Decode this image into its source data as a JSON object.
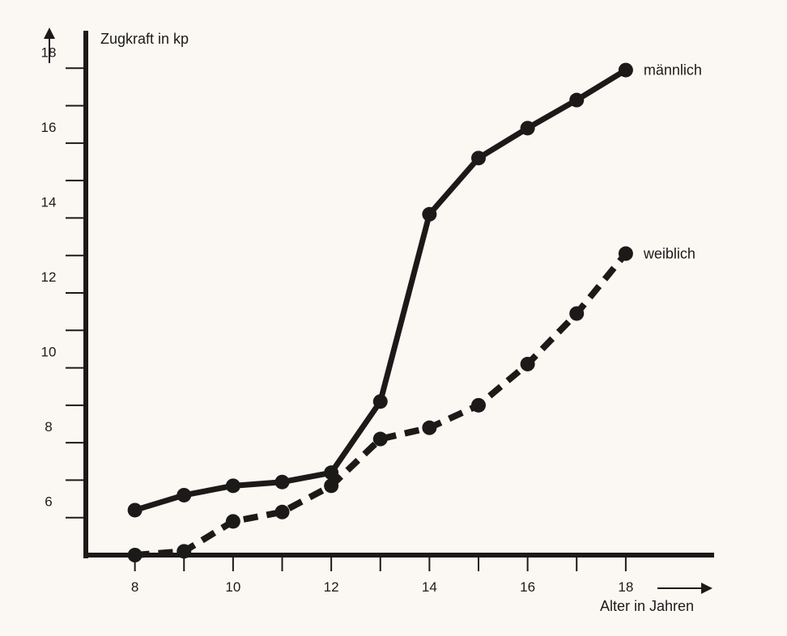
{
  "chart_data": {
    "type": "line",
    "ylabel": "Zugkraft in kp",
    "xlabel": "Alter in Jahren",
    "x": [
      8,
      9,
      10,
      11,
      12,
      13,
      14,
      15,
      16,
      17,
      18
    ],
    "xlim": [
      7,
      19.8
    ],
    "ylim": [
      5,
      19
    ],
    "x_ticks": [
      8,
      9,
      10,
      11,
      12,
      13,
      14,
      15,
      16,
      17,
      18
    ],
    "x_tick_labels": [
      "8",
      "10",
      "12",
      "14",
      "16",
      "18"
    ],
    "y_ticks": [
      6,
      7,
      8,
      9,
      10,
      11,
      12,
      13,
      14,
      15,
      16,
      17,
      18
    ],
    "y_tick_labels": [
      "6",
      "8",
      "10",
      "12",
      "14",
      "16",
      "18"
    ],
    "grid": false,
    "legend": "inline labels at line ends",
    "series": [
      {
        "name": "männlich",
        "style": "solid",
        "values": [
          6.2,
          6.6,
          6.85,
          6.95,
          7.2,
          9.1,
          14.1,
          15.6,
          16.4,
          17.15,
          17.95
        ]
      },
      {
        "name": "weiblich",
        "style": "dashed",
        "values": [
          5.0,
          5.1,
          5.9,
          6.15,
          6.85,
          8.1,
          8.4,
          9.0,
          10.1,
          11.45,
          13.05
        ]
      }
    ]
  }
}
